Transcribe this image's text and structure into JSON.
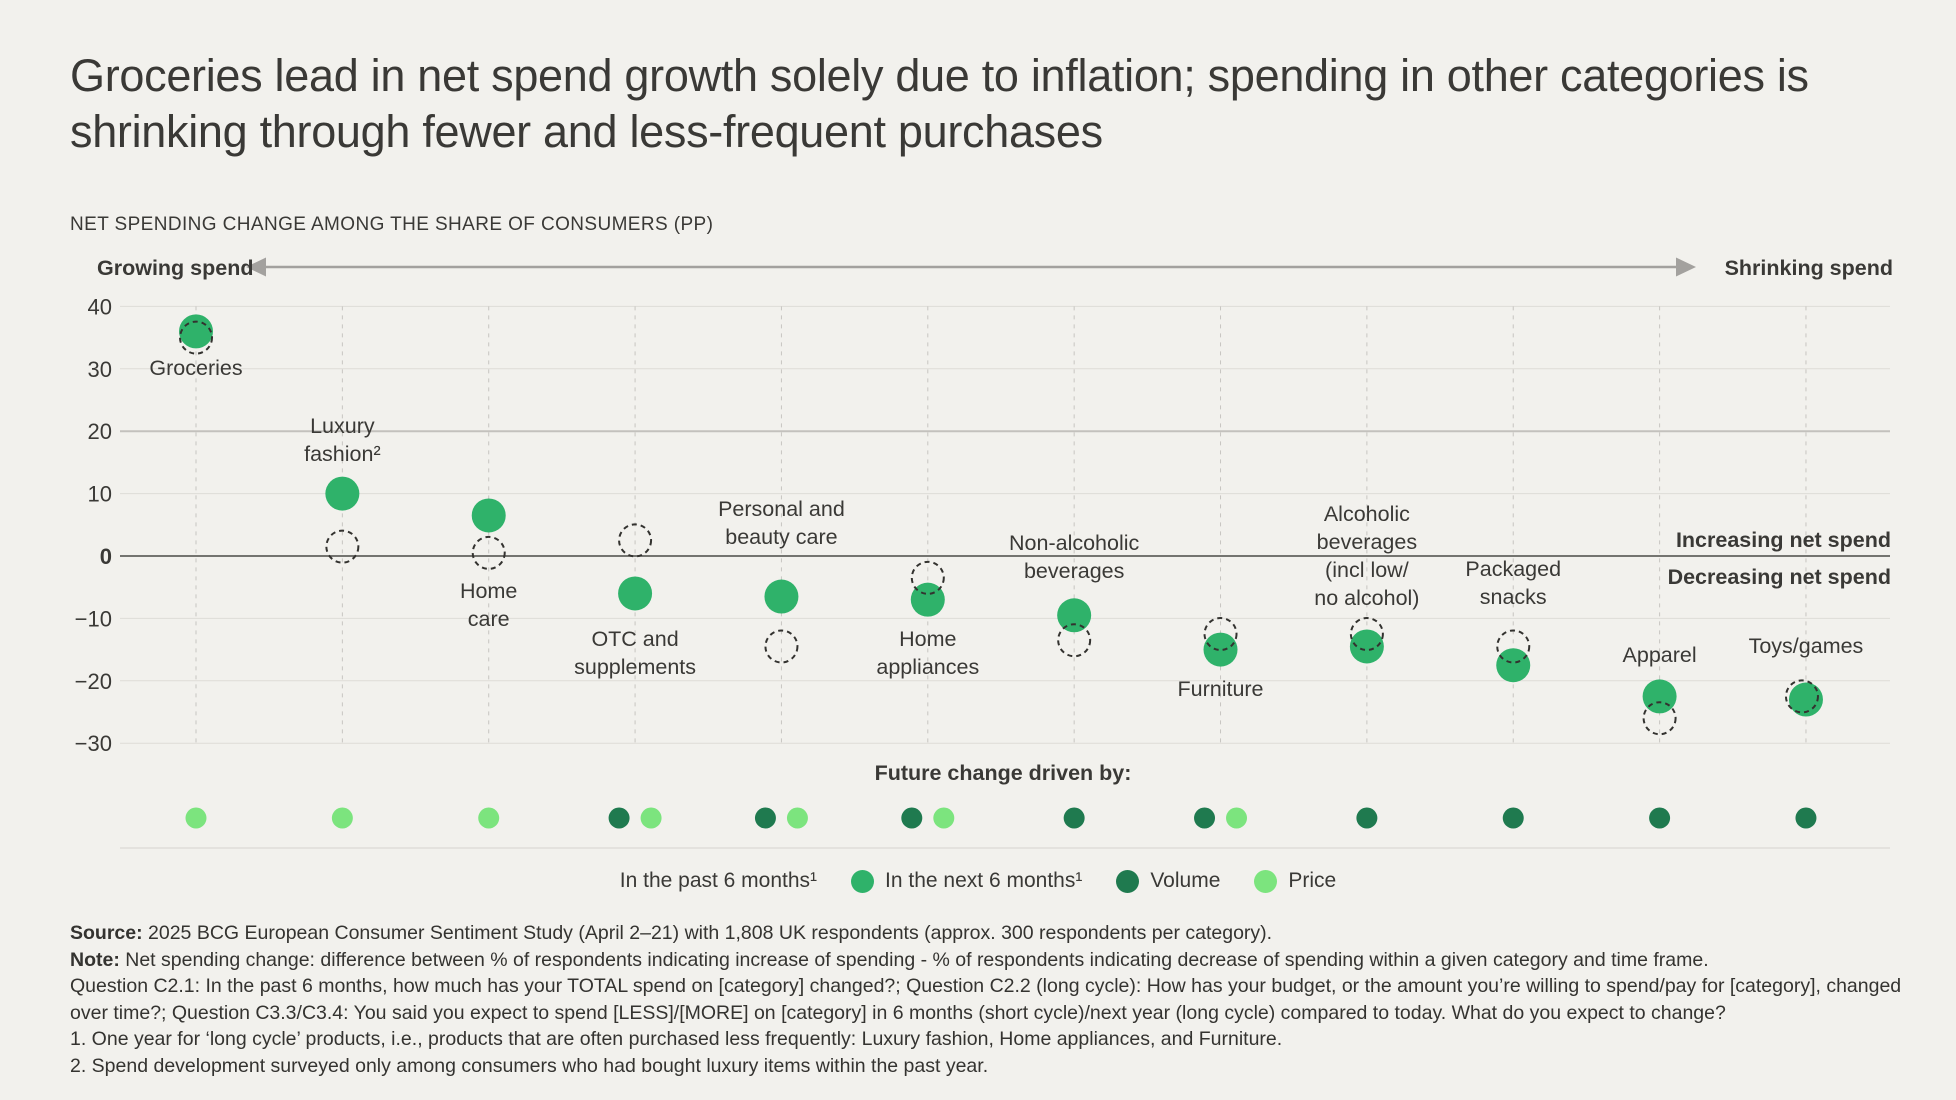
{
  "title": "Groceries lead in net spend growth solely due to inflation; spending in other categories is shrinking through fewer and less-frequent purchases",
  "subtitle": "NET SPENDING CHANGE AMONG THE SHARE OF CONSUMERS (PP)",
  "spend_axis": {
    "left_label": "Growing spend",
    "right_label": "Shrinking spend"
  },
  "annotations": {
    "increasing": "Increasing net spend",
    "decreasing": "Decreasing net spend"
  },
  "drivers_title": "Future change driven by:",
  "legend": {
    "past": "In the past 6 months¹",
    "next": "In the next 6 months¹",
    "volume": "Volume",
    "price": "Price"
  },
  "colors": {
    "background": "#f2f1ed",
    "next_green": "#2fb26a",
    "volume_dark_green": "#1f7a4f",
    "price_light_green": "#7ce47e",
    "dashed_outline": "#33322f",
    "increasing_text": "#2cb565",
    "decreasing_text": "#f3715c",
    "grid": "#dedcd7",
    "grid_emphasis": "#c3c1bd",
    "zero_line": "#4b4a46",
    "column_dash": "#c7c5c1",
    "bottom_line": "#d5d3cf",
    "arrow": "#a3a19e",
    "text": "#3a3936"
  },
  "chart_data": {
    "type": "scatter",
    "title": "NET SPENDING CHANGE AMONG THE SHARE OF CONSUMERS (PP)",
    "ylabel": "Net spending change (pp)",
    "y_ticks": [
      40,
      30,
      20,
      10,
      0,
      -10,
      -20,
      -30
    ],
    "ylim": [
      -35,
      43
    ],
    "grid": true,
    "series": [
      {
        "name": "In the past 6 months",
        "style": "dashed-circle"
      },
      {
        "name": "In the next 6 months",
        "style": "solid-circle"
      }
    ],
    "categories": [
      {
        "label": "Groceries",
        "label_lines": [
          "Groceries"
        ],
        "label_baseline": 375,
        "next": 36,
        "past": 35,
        "drivers": [
          "price"
        ]
      },
      {
        "label": "Luxury fashion²",
        "label_lines": [
          "Luxury",
          "fashion²"
        ],
        "label_baseline": 433,
        "next": 10,
        "past": 1.5,
        "drivers": [
          "price"
        ]
      },
      {
        "label": "Home care",
        "label_lines": [
          "Home",
          "care"
        ],
        "label_baseline": 598,
        "next": 6.5,
        "past": 0.5,
        "drivers": [
          "price"
        ]
      },
      {
        "label": "OTC and supplements",
        "label_lines": [
          "OTC and",
          "supplements"
        ],
        "label_baseline": 646,
        "next": -6,
        "past": 2.5,
        "drivers": [
          "volume",
          "price"
        ]
      },
      {
        "label": "Personal and beauty care",
        "label_lines": [
          "Personal and",
          "beauty care"
        ],
        "label_baseline": 516,
        "next": -6.5,
        "past": -14.5,
        "drivers": [
          "volume",
          "price"
        ]
      },
      {
        "label": "Home appliances",
        "label_lines": [
          "Home",
          "appliances"
        ],
        "label_baseline": 646,
        "next": -7,
        "past": -3.5,
        "drivers": [
          "volume",
          "price"
        ]
      },
      {
        "label": "Non-alcoholic beverages",
        "label_lines": [
          "Non-alcoholic",
          "beverages"
        ],
        "label_baseline": 550,
        "next": -9.5,
        "past": -13.5,
        "drivers": [
          "volume"
        ]
      },
      {
        "label": "Furniture",
        "label_lines": [
          "Furniture"
        ],
        "label_baseline": 696,
        "next": -15,
        "past": -12.5,
        "drivers": [
          "volume",
          "price"
        ]
      },
      {
        "label": "Alcoholic beverages (incl low/no alcohol)",
        "label_lines": [
          "Alcoholic",
          "beverages",
          "(incl low/",
          "no alcohol)"
        ],
        "label_baseline": 521,
        "next": -14.5,
        "past": -12.5,
        "drivers": [
          "volume"
        ]
      },
      {
        "label": "Packaged snacks",
        "label_lines": [
          "Packaged",
          "snacks"
        ],
        "label_baseline": 576,
        "next": -17.5,
        "past": -14.5,
        "drivers": [
          "volume"
        ]
      },
      {
        "label": "Apparel",
        "label_lines": [
          "Apparel"
        ],
        "label_baseline": 662,
        "next": -22.5,
        "past": -26,
        "drivers": [
          "volume"
        ]
      },
      {
        "label": "Toys/games",
        "label_lines": [
          "Toys/games"
        ],
        "label_baseline": 653,
        "next": -23,
        "past": -22.5,
        "past_dx": -4,
        "drivers": [
          "volume"
        ]
      }
    ]
  },
  "footnotes": [
    {
      "bold": "Source:",
      "text": " 2025 BCG European Consumer Sentiment Study (April 2–21) with 1,808 UK respondents (approx. 300 respondents per category)."
    },
    {
      "bold": "Note:",
      "text": " Net spending change: difference between % of respondents indicating increase of spending - % of respondents indicating decrease of spending within a given category and time frame."
    },
    {
      "bold": "",
      "text": "Question C2.1: In the past 6 months, how much has your TOTAL spend on [category] changed?; Question C2.2 (long cycle): How has your budget, or the amount you’re willing to spend/pay for [category], changed"
    },
    {
      "bold": "",
      "text": "over time?; Question C3.3/C3.4: You said you expect to spend [LESS]/[MORE] on [category] in 6 months (short cycle)/next year (long cycle) compared to today. What do you expect to change?"
    },
    {
      "bold": "",
      "text": "1. One year for ‘long cycle’ products, i.e., products that are often purchased less frequently: Luxury fashion, Home appliances, and Furniture."
    },
    {
      "bold": "",
      "text": "2. Spend development surveyed only among consumers who had bought luxury items within the past year."
    }
  ]
}
